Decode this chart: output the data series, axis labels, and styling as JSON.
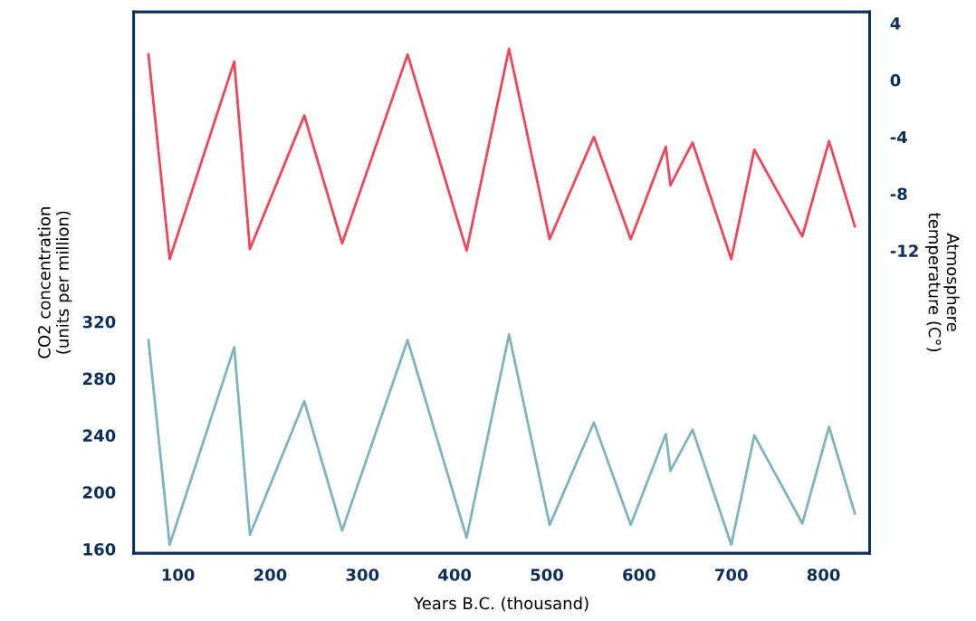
{
  "chart_data": {
    "type": "line",
    "xlabel": "Years B.C. (thousand)",
    "ylabel": "CO2 concentration\n(units per million)",
    "y2label": "Atmosphere\ntemperature (C°)",
    "x": [
      68,
      91,
      161,
      178,
      237,
      278,
      349,
      413,
      459,
      503,
      551,
      591,
      629,
      634,
      658,
      700,
      725,
      777,
      806,
      834
    ],
    "series": [
      {
        "color": "#7fb3bd",
        "values": [
          307,
          163,
          302,
          170,
          264,
          173,
          307,
          168,
          311,
          177,
          249,
          177,
          241,
          215,
          244,
          163,
          240,
          178,
          246,
          185
        ]
      },
      {
        "color": "#f0465a",
        "axis": "y2",
        "values": [
          1.8,
          -12.6,
          1.3,
          -11.9,
          -2.5,
          -11.5,
          1.8,
          -12,
          2.2,
          -11.2,
          -4,
          -11.2,
          -4.7,
          -7.4,
          -4.4,
          -12.6,
          -4.9,
          -11,
          -4.3,
          -10.3
        ]
      }
    ],
    "xlim": [
      52,
      850
    ],
    "xticks": [
      100,
      200,
      300,
      400,
      500,
      600,
      700,
      800
    ],
    "ylim": [
      157,
      538
    ],
    "yticks": [
      160,
      200,
      240,
      280,
      320
    ],
    "y2lim": [
      -33.3,
      4.8
    ],
    "y2ticks": [
      {
        "value": 4,
        "label": "4"
      },
      {
        "value": 0,
        "label": "0"
      },
      {
        "value": -4,
        "label": "-4"
      },
      {
        "value": -8,
        "label": "-8"
      },
      {
        "value": -12,
        "label": "-12"
      }
    ],
    "grid": false,
    "marker": "none",
    "line_style": "solid"
  }
}
